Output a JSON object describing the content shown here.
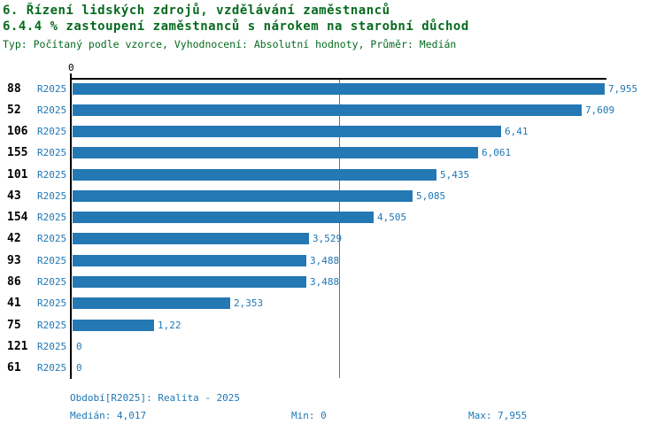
{
  "header": {
    "title_line1": "6. Řízení lidských zdrojů, vzdělávání zaměstnanců",
    "title_line2": "6.4.4 % zastoupení zaměstnanců s nárokem na starobní důchod",
    "subtitle": "Typ: Počítaný podle vzorce, Vyhodnocení: Absolutní hodnoty, Průměr: Medián"
  },
  "axis": {
    "origin_tick_label": "0"
  },
  "chart_data": {
    "type": "bar",
    "orientation": "horizontal",
    "categories": [
      "88",
      "52",
      "106",
      "155",
      "101",
      "43",
      "154",
      "42",
      "93",
      "86",
      "41",
      "75",
      "121",
      "61"
    ],
    "period_label": "R2025",
    "values": [
      7.955,
      7.609,
      6.41,
      6.061,
      5.435,
      5.085,
      4.505,
      3.529,
      3.488,
      3.488,
      2.353,
      1.22,
      0,
      0
    ],
    "value_labels": [
      "7,955",
      "7,609",
      "6,41",
      "6,061",
      "5,435",
      "5,085",
      "4,505",
      "3,529",
      "3,488",
      "3,488",
      "2,353",
      "1,22",
      "0",
      "0"
    ],
    "xlim": [
      0,
      7.955
    ],
    "median": 4.017,
    "grid": "off",
    "legend": "none",
    "bar_color": "#2478b4",
    "median_line_color": "#2e86c1",
    "value_label_color": "#1f77b4"
  },
  "footer": {
    "period_info": "Období[R2025]: Realita - 2025",
    "median_label": "Medián: 4,017",
    "min_label": "Min: 0",
    "max_label": "Max: 7,955"
  },
  "colors": {
    "title_green": "#066a1f",
    "axis_black": "#000000",
    "bar_blue": "#2478b4",
    "text_blue": "#1f77b4",
    "background": "#ffffff"
  }
}
